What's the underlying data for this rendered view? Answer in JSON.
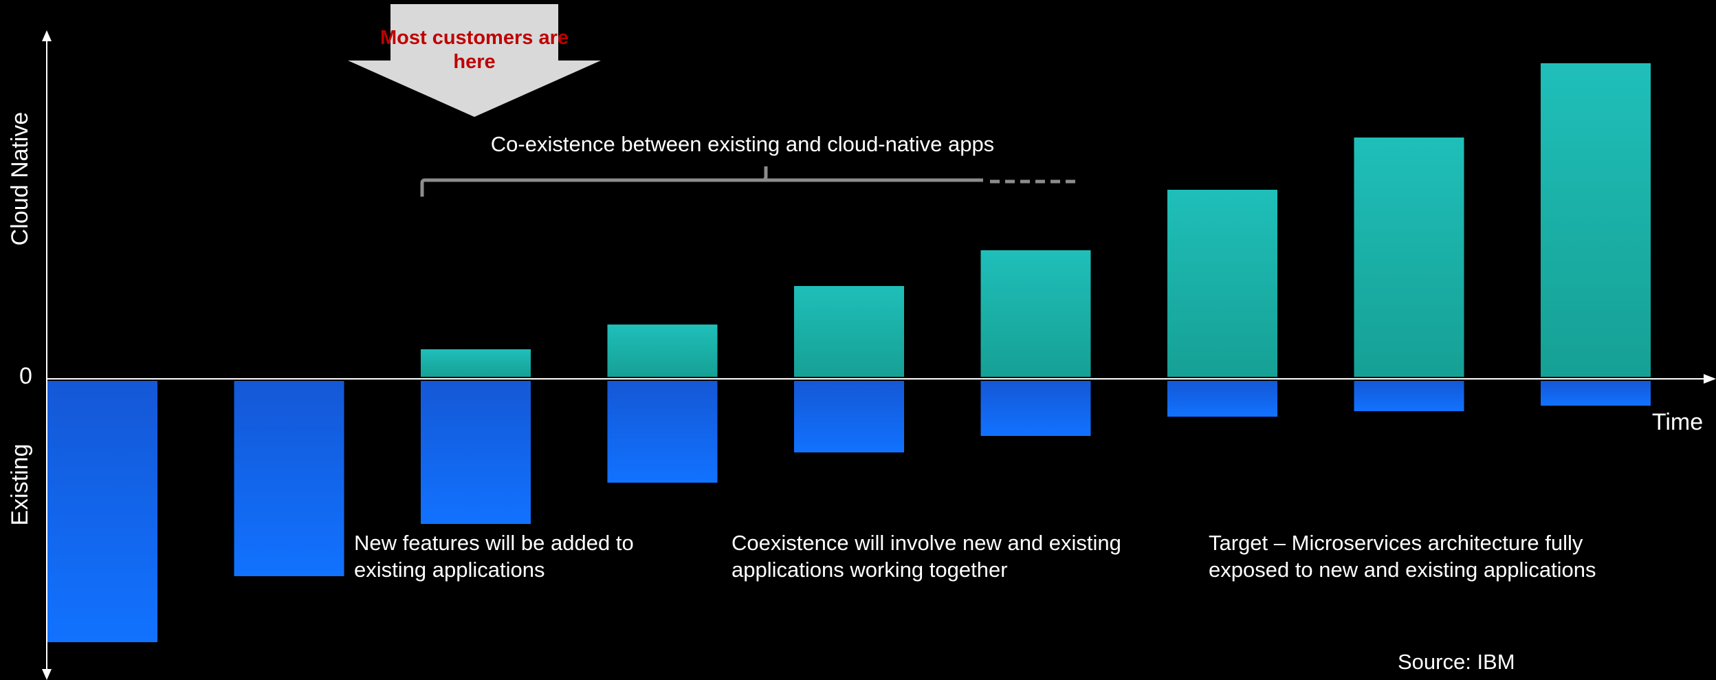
{
  "chart_data": {
    "type": "bar",
    "title": "",
    "xlabel": "Time",
    "ylabel_positive": "Cloud Native",
    "ylabel_negative": "Existing",
    "zero_label": "0",
    "grid": false,
    "categories": [
      "",
      "",
      "",
      "",
      "",
      "",
      "",
      "",
      ""
    ],
    "series": [
      {
        "name": "Cloud Native",
        "color": "#1fbcb6",
        "values": [
          0,
          0,
          10,
          19,
          33,
          46,
          68,
          87,
          114
        ]
      },
      {
        "name": "Existing",
        "color": "#1565f0",
        "values": [
          -95,
          -71,
          -52,
          -37,
          -26,
          -20,
          -13,
          -11,
          -9
        ]
      }
    ],
    "ylim": [
      -109,
      126
    ]
  },
  "callout": {
    "text_line1": "Most customers are",
    "text_line2": "here",
    "text_color": "#c00000",
    "fill_color": "#d9d9d9"
  },
  "coexistence_label": "Co-existence between existing and cloud-native apps",
  "annotations": [
    {
      "line1": "New features will be added to",
      "line2": "existing applications"
    },
    {
      "line1": "Coexistence will involve new and existing",
      "line2": "applications working together"
    },
    {
      "line1": "Target – Microservices architecture fully",
      "line2": "exposed to new and existing applications"
    }
  ],
  "source": "Source: IBM"
}
